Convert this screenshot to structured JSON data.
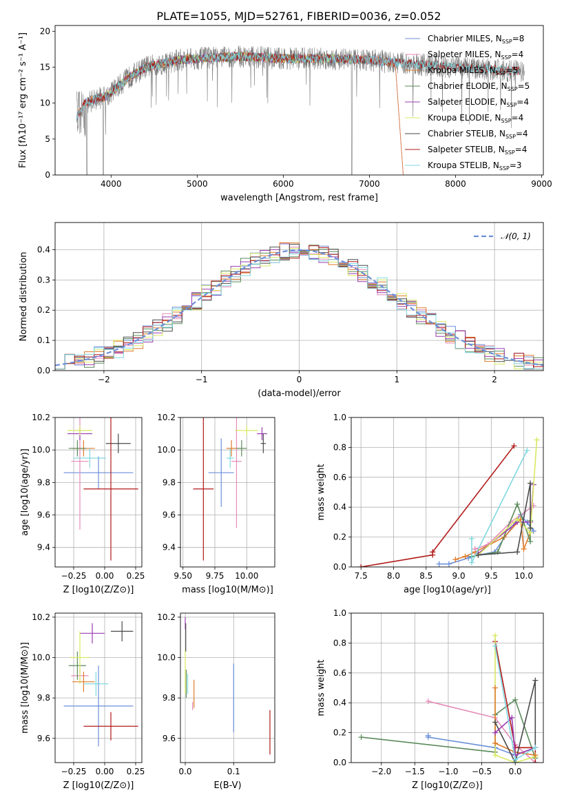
{
  "title": "PLATE=1055, MJD=52761, FIBERID=0036, z=0.052",
  "colors": {
    "Chabrier MILES": "#6a8fd8",
    "Salpeter MILES": "#e48ab8",
    "Kroupa MILES": "#e07a28",
    "Chabrier ELODIE": "#5a8a5a",
    "Salpeter ELODIE": "#9a3ab0",
    "Kroupa ELODIE": "#d8e860",
    "Chabrier STELIB": "#4a4a4a",
    "Salpeter STELIB": "#b01818",
    "Kroupa STELIB": "#80d8e0"
  },
  "chart_data": [
    {
      "id": "spectrum",
      "type": "line",
      "xlabel": "wavelength [Angstrom, rest frame]",
      "ylabel": "Flux [fλ10⁻¹⁷ erg cm⁻² s⁻¹ A⁻¹]",
      "xlim": [
        3350,
        9020
      ],
      "ylim": [
        0,
        20.8
      ],
      "xticks": [
        4000,
        5000,
        6000,
        7000,
        8000,
        9000
      ],
      "yticks": [
        0,
        5,
        10,
        15,
        20
      ],
      "grid": false,
      "legend_position": "right",
      "legend": [
        {
          "model": "Chabrier MILES",
          "nssp": "8"
        },
        {
          "model": "Salpeter MILES",
          "nssp": "4"
        },
        {
          "model": "Kroupa MILES",
          "nssp": "5"
        },
        {
          "model": "Chabrier ELODIE",
          "nssp": "5"
        },
        {
          "model": "Salpeter ELODIE",
          "nssp": "4"
        },
        {
          "model": "Kroupa ELODIE",
          "nssp": "4"
        },
        {
          "model": "Chabrier STELIB",
          "nssp": "4"
        },
        {
          "model": "Salpeter STELIB",
          "nssp": "4"
        },
        {
          "model": "Kroupa STELIB",
          "nssp": "3"
        }
      ],
      "continuum": [
        [
          3600,
          8
        ],
        [
          3700,
          10
        ],
        [
          3800,
          10.5
        ],
        [
          3950,
          11
        ],
        [
          4050,
          12
        ],
        [
          4200,
          13.5
        ],
        [
          4400,
          15
        ],
        [
          4600,
          15.5
        ],
        [
          4800,
          16
        ],
        [
          5000,
          16.2
        ],
        [
          5500,
          16.5
        ],
        [
          6000,
          16.2
        ],
        [
          6500,
          16.2
        ],
        [
          7000,
          16
        ],
        [
          7400,
          15.5
        ],
        [
          7800,
          15.2
        ],
        [
          8200,
          14.8
        ],
        [
          8700,
          14.5
        ]
      ],
      "data_range": [
        3600,
        8800
      ],
      "model_ranges": {
        "MILES": [
          3600,
          7400
        ],
        "ELODIE": [
          3900,
          6800
        ],
        "STELIB": [
          3600,
          8750
        ]
      }
    },
    {
      "id": "residuals",
      "type": "histogram",
      "xlabel": "(data-model)/error",
      "ylabel": "Normed distribution",
      "xlim": [
        -2.5,
        2.5
      ],
      "ylim": [
        0,
        0.49
      ],
      "xticks": [
        -2,
        -1,
        0,
        1,
        2
      ],
      "yticks": [
        0.0,
        0.1,
        0.2,
        0.3,
        0.4
      ],
      "grid": true,
      "legend_position": "top-right",
      "legend": [
        "𝒩(0, 1)"
      ],
      "bin_width": 0.1
    },
    {
      "id": "age_vs_Z",
      "type": "scatter",
      "xlabel": "Z [log10(Z/Z⊙)]",
      "ylabel": "age  [log10(age/yr)]",
      "xlim": [
        -0.4,
        0.3
      ],
      "ylim": [
        9.28,
        10.2
      ],
      "xticks": [
        -0.25,
        0.0,
        0.25
      ],
      "yticks": [
        9.4,
        9.6,
        9.8,
        10.0,
        10.2
      ],
      "grid": true,
      "points": [
        {
          "model": "Chabrier MILES",
          "x": -0.05,
          "y": 9.86,
          "xerr": 0.28,
          "yerr": 0.1
        },
        {
          "model": "Salpeter MILES",
          "x": -0.2,
          "y": 9.93,
          "xerr": 0.07,
          "yerr": 0.42
        },
        {
          "model": "Kroupa MILES",
          "x": -0.17,
          "y": 10.01,
          "xerr": 0.09,
          "yerr": 0.05
        },
        {
          "model": "Chabrier ELODIE",
          "x": -0.22,
          "y": 10.01,
          "xerr": 0.07,
          "yerr": 0.05
        },
        {
          "model": "Salpeter ELODIE",
          "x": -0.2,
          "y": 10.1,
          "xerr": 0.1,
          "yerr": 0.04
        },
        {
          "model": "Kroupa ELODIE",
          "x": -0.2,
          "y": 10.12,
          "xerr": 0.1,
          "yerr": 0.03
        },
        {
          "model": "Chabrier STELIB",
          "x": 0.11,
          "y": 10.04,
          "xerr": 0.1,
          "yerr": 0.06
        },
        {
          "model": "Salpeter STELIB",
          "x": 0.05,
          "y": 9.76,
          "xerr": 0.22,
          "yerr": 0.44
        },
        {
          "model": "Kroupa STELIB",
          "x": -0.12,
          "y": 9.95,
          "xerr": 0.13,
          "yerr": 0.06
        }
      ]
    },
    {
      "id": "age_vs_mass",
      "type": "scatter",
      "xlabel": "mass [log10(M/M⊙)]",
      "ylabel": "",
      "xlim": [
        9.48,
        10.22
      ],
      "ylim": [
        9.28,
        10.2
      ],
      "xticks": [
        9.5,
        9.75,
        10.0
      ],
      "yticks": [
        9.4,
        9.6,
        9.8,
        10.0,
        10.2
      ],
      "grid": true,
      "points": [
        {
          "model": "Chabrier MILES",
          "x": 9.8,
          "y": 9.86,
          "xerr": 0.1,
          "yerr": 0.21
        },
        {
          "model": "Salpeter MILES",
          "x": 9.92,
          "y": 9.93,
          "xerr": 0.04,
          "yerr": 0.41
        },
        {
          "model": "Kroupa MILES",
          "x": 9.88,
          "y": 10.01,
          "xerr": 0.04,
          "yerr": 0.05
        },
        {
          "model": "Chabrier ELODIE",
          "x": 9.96,
          "y": 10.01,
          "xerr": 0.04,
          "yerr": 0.05
        },
        {
          "model": "Salpeter ELODIE",
          "x": 10.12,
          "y": 10.1,
          "xerr": 0.04,
          "yerr": 0.04
        },
        {
          "model": "Kroupa ELODIE",
          "x": 10.0,
          "y": 10.12,
          "xerr": 0.09,
          "yerr": 0.03
        },
        {
          "model": "Chabrier STELIB",
          "x": 10.13,
          "y": 10.04,
          "xerr": 0.02,
          "yerr": 0.06
        },
        {
          "model": "Salpeter STELIB",
          "x": 9.66,
          "y": 9.76,
          "xerr": 0.08,
          "yerr": 0.44
        },
        {
          "model": "Kroupa STELIB",
          "x": 9.87,
          "y": 9.95,
          "xerr": 0.03,
          "yerr": 0.06
        }
      ]
    },
    {
      "id": "massweight_vs_age",
      "type": "line",
      "xlabel": "age  [log10(age/yr)]",
      "ylabel": "mass weight",
      "xlim": [
        7.35,
        10.3
      ],
      "ylim": [
        0,
        1.0
      ],
      "xticks": [
        7.5,
        8.0,
        8.5,
        9.0,
        9.5,
        10.0
      ],
      "yticks": [
        0.0,
        0.2,
        0.4,
        0.6,
        0.8,
        1.0
      ],
      "grid": true,
      "series": [
        {
          "model": "Salpeter STELIB",
          "points": [
            [
              7.5,
              0.0
            ],
            [
              8.6,
              0.08
            ],
            [
              8.6,
              0.1
            ],
            [
              9.85,
              0.81
            ]
          ]
        },
        {
          "model": "Chabrier MILES",
          "points": [
            [
              8.7,
              0.02
            ],
            [
              8.85,
              0.02
            ],
            [
              9.15,
              0.06
            ],
            [
              9.3,
              0.08
            ],
            [
              9.55,
              0.1
            ],
            [
              9.95,
              0.35
            ],
            [
              10.15,
              0.24
            ],
            [
              10.05,
              0.3
            ]
          ]
        },
        {
          "model": "Kroupa MILES",
          "points": [
            [
              8.95,
              0.05
            ],
            [
              9.1,
              0.07
            ],
            [
              9.25,
              0.1
            ],
            [
              9.7,
              0.2
            ],
            [
              9.95,
              0.32
            ],
            [
              10.0,
              0.12
            ],
            [
              10.1,
              0.23
            ]
          ]
        },
        {
          "model": "Salpeter MILES",
          "points": [
            [
              9.25,
              0.12
            ],
            [
              9.45,
              0.15
            ],
            [
              9.8,
              0.3
            ],
            [
              10.15,
              0.41
            ]
          ]
        },
        {
          "model": "Chabrier ELODIE",
          "points": [
            [
              9.2,
              0.07
            ],
            [
              9.6,
              0.1
            ],
            [
              9.9,
              0.42
            ],
            [
              10.1,
              0.17
            ],
            [
              10.1,
              0.31
            ]
          ]
        },
        {
          "model": "Salpeter ELODIE",
          "points": [
            [
              9.3,
              0.09
            ],
            [
              9.9,
              0.3
            ],
            [
              10.1,
              0.3
            ],
            [
              10.15,
              0.55
            ]
          ]
        },
        {
          "model": "Kroupa ELODIE",
          "points": [
            [
              9.3,
              0.08
            ],
            [
              9.9,
              0.32
            ],
            [
              10.1,
              0.23
            ],
            [
              10.2,
              0.85
            ]
          ]
        },
        {
          "model": "Chabrier STELIB",
          "points": [
            [
              9.3,
              0.08
            ],
            [
              9.9,
              0.1
            ],
            [
              10.1,
              0.56
            ],
            [
              10.1,
              0.26
            ]
          ]
        },
        {
          "model": "Kroupa STELIB",
          "points": [
            [
              9.2,
              0.19
            ],
            [
              9.2,
              0.03
            ],
            [
              10.05,
              0.78
            ]
          ]
        }
      ]
    },
    {
      "id": "mass_vs_Z",
      "type": "scatter",
      "xlabel": "Z [log10(Z/Z⊙)]",
      "ylabel": "mass [log10(M/M⊙)]",
      "xlim": [
        -0.4,
        0.3
      ],
      "ylim": [
        9.48,
        10.22
      ],
      "xticks": [
        -0.25,
        0.0,
        0.25
      ],
      "yticks": [
        9.6,
        9.8,
        10.0,
        10.2
      ],
      "grid": true,
      "points": [
        {
          "model": "Chabrier MILES",
          "x": -0.05,
          "y": 9.76,
          "xerr": 0.28,
          "yerr": 0.2
        },
        {
          "model": "Salpeter MILES",
          "x": -0.2,
          "y": 9.91,
          "xerr": 0.07,
          "yerr": 0.04
        },
        {
          "model": "Kroupa MILES",
          "x": -0.17,
          "y": 9.88,
          "xerr": 0.09,
          "yerr": 0.05
        },
        {
          "model": "Chabrier ELODIE",
          "x": -0.22,
          "y": 9.96,
          "xerr": 0.07,
          "yerr": 0.07
        },
        {
          "model": "Salpeter ELODIE",
          "x": -0.1,
          "y": 10.12,
          "xerr": 0.1,
          "yerr": 0.05
        },
        {
          "model": "Kroupa ELODIE",
          "x": -0.2,
          "y": 10.0,
          "xerr": 0.08,
          "yerr": 0.13
        },
        {
          "model": "Chabrier STELIB",
          "x": 0.14,
          "y": 10.13,
          "xerr": 0.09,
          "yerr": 0.05
        },
        {
          "model": "Salpeter STELIB",
          "x": 0.05,
          "y": 9.66,
          "xerr": 0.22,
          "yerr": 0.07
        },
        {
          "model": "Kroupa STELIB",
          "x": -0.07,
          "y": 9.87,
          "xerr": 0.1,
          "yerr": 0.06
        }
      ]
    },
    {
      "id": "mass_vs_ebv",
      "type": "scatter",
      "xlabel": "E(B-V)",
      "ylabel": "",
      "xlim": [
        -0.01,
        0.185
      ],
      "ylim": [
        9.48,
        10.22
      ],
      "xticks": [
        0.0,
        0.1
      ],
      "yticks": [
        9.6,
        9.8,
        10.0,
        10.2
      ],
      "grid": true,
      "points": [
        {
          "model": "Chabrier MILES",
          "x": 0.1,
          "y": 9.8,
          "xerr": 0,
          "yerr": 0.17
        },
        {
          "model": "Salpeter MILES",
          "x": 0.015,
          "y": 9.76,
          "xerr": 0,
          "yerr": 0.02
        },
        {
          "model": "Kroupa MILES",
          "x": 0.018,
          "y": 9.82,
          "xerr": 0,
          "yerr": 0.07
        },
        {
          "model": "Chabrier ELODIE",
          "x": 0.002,
          "y": 9.87,
          "xerr": 0,
          "yerr": 0.07
        },
        {
          "model": "Salpeter ELODIE",
          "x": 0.0,
          "y": 10.17,
          "xerr": 0,
          "yerr": 0.03
        },
        {
          "model": "Kroupa ELODIE",
          "x": 0.0,
          "y": 9.93,
          "xerr": 0,
          "yerr": 0.11
        },
        {
          "model": "Chabrier STELIB",
          "x": 0.001,
          "y": 10.1,
          "xerr": 0,
          "yerr": 0.07
        },
        {
          "model": "Salpeter STELIB",
          "x": 0.175,
          "y": 9.63,
          "xerr": 0,
          "yerr": 0.11
        },
        {
          "model": "Kroupa STELIB",
          "x": 0.005,
          "y": 9.87,
          "xerr": 0,
          "yerr": 0.05
        }
      ]
    },
    {
      "id": "massweight_vs_Z",
      "type": "line",
      "xlabel": "Z [log10(Z/Z⊙)]",
      "ylabel": "mass weight",
      "xlim": [
        -2.45,
        0.42
      ],
      "ylim": [
        0,
        1.0
      ],
      "xticks": [
        -2.0,
        -1.5,
        -1.0,
        -0.5,
        0.0
      ],
      "yticks": [
        0.0,
        0.2,
        0.4,
        0.6,
        0.8,
        1.0
      ],
      "grid": true,
      "series": [
        {
          "model": "Chabrier ELODIE",
          "points": [
            [
              -2.3,
              0.17
            ],
            [
              -0.3,
              0.07
            ],
            [
              -0.3,
              0.32
            ],
            [
              0.0,
              0.42
            ],
            [
              0.3,
              0.03
            ]
          ]
        },
        {
          "model": "Chabrier MILES",
          "points": [
            [
              -1.3,
              0.18
            ],
            [
              -1.3,
              0.17
            ],
            [
              -0.3,
              0.1
            ],
            [
              0.0,
              0.05
            ],
            [
              0.3,
              0.1
            ]
          ]
        },
        {
          "model": "Salpeter MILES",
          "points": [
            [
              -1.3,
              0.41
            ],
            [
              -0.3,
              0.3
            ],
            [
              0.0,
              0.12
            ],
            [
              0.3,
              0.0
            ]
          ]
        },
        {
          "model": "Salpeter STELIB",
          "points": [
            [
              -0.3,
              0.81
            ],
            [
              0.0,
              0.1
            ],
            [
              0.3,
              0.1
            ],
            [
              0.3,
              0.0
            ]
          ]
        },
        {
          "model": "Kroupa ELODIE",
          "points": [
            [
              -0.3,
              0.85
            ],
            [
              -0.3,
              0.05
            ],
            [
              0.0,
              0.0
            ],
            [
              0.3,
              0.04
            ]
          ]
        },
        {
          "model": "Kroupa MILES",
          "points": [
            [
              -0.3,
              0.5
            ],
            [
              -0.3,
              0.13
            ],
            [
              0.0,
              0.07
            ],
            [
              0.3,
              0.05
            ]
          ]
        },
        {
          "model": "Chabrier STELIB",
          "points": [
            [
              -0.3,
              0.27
            ],
            [
              0.0,
              0.0
            ],
            [
              0.3,
              0.55
            ],
            [
              0.3,
              0.1
            ]
          ]
        },
        {
          "model": "Salpeter ELODIE",
          "points": [
            [
              -0.3,
              0.2
            ],
            [
              -0.05,
              0.3
            ],
            [
              0.0,
              0.05
            ],
            [
              0.3,
              0.1
            ]
          ]
        },
        {
          "model": "Kroupa STELIB",
          "points": [
            [
              -0.3,
              0.78
            ],
            [
              0.0,
              0.02
            ],
            [
              0.3,
              0.1
            ]
          ]
        }
      ]
    }
  ]
}
